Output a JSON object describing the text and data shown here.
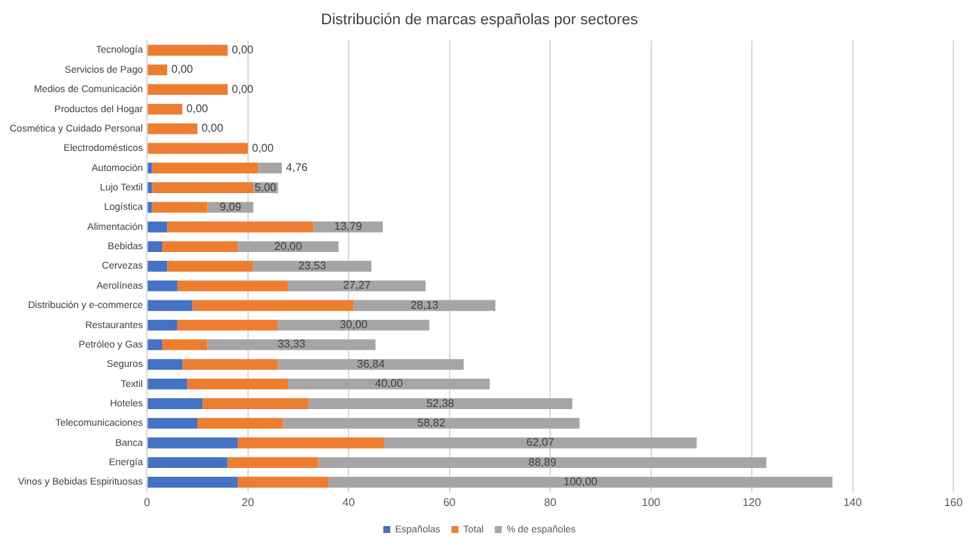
{
  "chart_data": {
    "type": "bar",
    "orientation": "horizontal",
    "stacked": true,
    "title": "Distribución de marcas españolas por sectores",
    "categories": [
      "Tecnología",
      "Servicios de Pago",
      "Medios de Comunicación",
      "Productos del Hogar",
      "Cosmética y Cuidado Personal",
      "Electrodomésticos",
      "Automoción",
      "Lujo Textil",
      "Logística",
      "Alimentación",
      "Bebidas",
      "Cervezas",
      "Aerolíneas",
      "Distribución y e-commerce",
      "Restaurantes",
      "Petróleo y Gas",
      "Seguros",
      "Textil",
      "Hoteles",
      "Telecomunicaciones",
      "Banca",
      "Energía",
      "Vinos y Bebidas Espirituosas"
    ],
    "series": [
      {
        "name": "Españolas",
        "color": "#4472c4",
        "values": [
          0,
          0,
          0,
          0,
          0,
          0,
          1,
          1,
          1,
          4,
          3,
          4,
          6,
          9,
          6,
          3,
          7,
          8,
          11,
          10,
          18,
          16,
          18
        ]
      },
      {
        "name": "Total",
        "color": "#ed7d31",
        "values": [
          16,
          4,
          16,
          7,
          10,
          20,
          21,
          20,
          11,
          29,
          15,
          17,
          22,
          32,
          20,
          9,
          19,
          20,
          21,
          17,
          29,
          18,
          18
        ]
      },
      {
        "name": "% de españoles",
        "color": "#a5a5a5",
        "values": [
          0,
          0,
          0,
          0,
          0,
          0,
          4.76,
          5,
          9.09,
          13.79,
          20,
          23.53,
          27.27,
          28.13,
          30,
          33.33,
          36.84,
          40,
          52.38,
          58.82,
          62.07,
          88.89,
          100
        ],
        "value_labels": [
          "0,00",
          "0,00",
          "0,00",
          "0,00",
          "0,00",
          "0,00",
          "4,76",
          "5,00",
          "9,09",
          "13,79",
          "20,00",
          "23,53",
          "27,27",
          "28,13",
          "30,00",
          "33,33",
          "36,84",
          "40,00",
          "52,38",
          "58,82",
          "62,07",
          "88,89",
          "100,00"
        ]
      }
    ],
    "xlim": [
      0,
      160
    ],
    "xticks": [
      0,
      20,
      40,
      60,
      80,
      100,
      120,
      140,
      160
    ],
    "grid": "x",
    "legend": "bottom"
  }
}
